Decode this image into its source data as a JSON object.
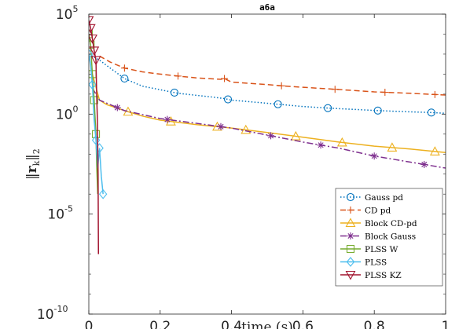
{
  "chart_data": {
    "type": "line",
    "title": "a6a",
    "xlabel": "time (s)",
    "ylabel": "||r_k||_2",
    "xlim": [
      0,
      1
    ],
    "ylim_log10": [
      -10,
      5
    ],
    "yscale": "log",
    "x_ticks": [
      "0",
      "0.2",
      "0.4",
      "0.6",
      "0.8",
      "1"
    ],
    "y_ticks": [
      {
        "base": "10",
        "exp": "5",
        "log10": 5
      },
      {
        "base": "10",
        "exp": "0",
        "log10": 0
      },
      {
        "base": "10",
        "exp": "-5",
        "log10": -5
      },
      {
        "base": "10",
        "exp": "-10",
        "log10": -10
      }
    ],
    "legend_position": "bottom-right",
    "series": [
      {
        "name": "Gauss pd",
        "color": "#0072BD",
        "dash": "1.5 2.5",
        "marker": "circle",
        "points": [
          [
            0,
            1000
          ],
          [
            0.03,
            500
          ],
          [
            0.06,
            200
          ],
          [
            0.1,
            60
          ],
          [
            0.15,
            25
          ],
          [
            0.25,
            11
          ],
          [
            0.35,
            7
          ],
          [
            0.38,
            6
          ],
          [
            0.4,
            5
          ],
          [
            0.5,
            3.5
          ],
          [
            0.54,
            3
          ],
          [
            0.6,
            2.4
          ],
          [
            0.67,
            2
          ],
          [
            0.75,
            1.7
          ],
          [
            0.81,
            1.5
          ],
          [
            0.9,
            1.3
          ],
          [
            0.96,
            1.2
          ],
          [
            1,
            1.1
          ]
        ],
        "markers_x": [
          0.1,
          0.24,
          0.39,
          0.53,
          0.67,
          0.81,
          0.96
        ]
      },
      {
        "name": "CD pd",
        "color": "#D95319",
        "dash": "7 4",
        "marker": "plus",
        "points": [
          [
            0.03,
            800
          ],
          [
            0.06,
            400
          ],
          [
            0.1,
            200
          ],
          [
            0.15,
            130
          ],
          [
            0.2,
            100
          ],
          [
            0.25,
            80
          ],
          [
            0.3,
            65
          ],
          [
            0.37,
            55
          ],
          [
            0.38,
            60
          ],
          [
            0.4,
            40
          ],
          [
            0.5,
            30
          ],
          [
            0.54,
            26
          ],
          [
            0.6,
            22
          ],
          [
            0.7,
            17
          ],
          [
            0.8,
            13
          ],
          [
            0.9,
            11
          ],
          [
            1,
            9
          ]
        ],
        "markers_x": [
          0.1,
          0.25,
          0.38,
          0.54,
          0.69,
          0.83,
          0.97
        ]
      },
      {
        "name": "Block CD-pd",
        "color": "#EDB120",
        "dash": "",
        "marker": "triangle-up",
        "points": [
          [
            0.01,
            100
          ],
          [
            0.03,
            5
          ],
          [
            0.05,
            3
          ],
          [
            0.1,
            1.5
          ],
          [
            0.15,
            0.8
          ],
          [
            0.2,
            0.5
          ],
          [
            0.3,
            0.3
          ],
          [
            0.4,
            0.2
          ],
          [
            0.5,
            0.12
          ],
          [
            0.6,
            0.07
          ],
          [
            0.7,
            0.04
          ],
          [
            0.8,
            0.025
          ],
          [
            0.9,
            0.018
          ],
          [
            1,
            0.012
          ]
        ],
        "markers_x": [
          0.11,
          0.23,
          0.36,
          0.44,
          0.58,
          0.71,
          0.85,
          0.97
        ]
      },
      {
        "name": "Block Gauss",
        "color": "#7E2F8E",
        "dash": "8 3 2 3",
        "marker": "star",
        "points": [
          [
            0.01,
            20
          ],
          [
            0.03,
            5
          ],
          [
            0.1,
            1.5
          ],
          [
            0.2,
            0.6
          ],
          [
            0.3,
            0.35
          ],
          [
            0.4,
            0.2
          ],
          [
            0.5,
            0.09
          ],
          [
            0.6,
            0.04
          ],
          [
            0.7,
            0.02
          ],
          [
            0.8,
            0.008
          ],
          [
            0.9,
            0.004
          ],
          [
            1,
            0.002
          ]
        ],
        "markers_x": [
          0.08,
          0.22,
          0.37,
          0.51,
          0.65,
          0.8,
          0.94
        ]
      },
      {
        "name": "PLSS W",
        "color": "#77AC30",
        "dash": "",
        "marker": "square",
        "points": [
          [
            0,
            10000
          ],
          [
            0.005,
            3000
          ],
          [
            0.01,
            100
          ],
          [
            0.015,
            5
          ],
          [
            0.02,
            0.1
          ],
          [
            0.022,
            0.003
          ],
          [
            0.025,
            0.0001
          ]
        ],
        "markers_x": [
          0,
          0.005,
          0.01,
          0.015,
          0.02
        ]
      },
      {
        "name": "PLSS",
        "color": "#4DBEEE",
        "dash": "",
        "marker": "diamond",
        "points": [
          [
            0,
            1000
          ],
          [
            0.005,
            300
          ],
          [
            0.01,
            30
          ],
          [
            0.015,
            0.5
          ],
          [
            0.02,
            0.05
          ],
          [
            0.025,
            0.002
          ],
          [
            0.03,
            0.02
          ],
          [
            0.035,
            0.0008
          ],
          [
            0.04,
            0.0001
          ]
        ],
        "markers_x": [
          0,
          0.01,
          0.02,
          0.03,
          0.04
        ]
      },
      {
        "name": "PLSS KZ",
        "color": "#A2142F",
        "dash": "",
        "marker": "triangle-down",
        "points": [
          [
            0,
            50000
          ],
          [
            0.005,
            20000
          ],
          [
            0.01,
            6000
          ],
          [
            0.015,
            1500
          ],
          [
            0.02,
            500
          ],
          [
            0.022,
            10
          ],
          [
            0.024,
            0.5
          ],
          [
            0.026,
            0.001
          ],
          [
            0.027,
            1e-07
          ]
        ],
        "markers_x": [
          0,
          0.005,
          0.01,
          0.015,
          0.02
        ]
      }
    ]
  }
}
